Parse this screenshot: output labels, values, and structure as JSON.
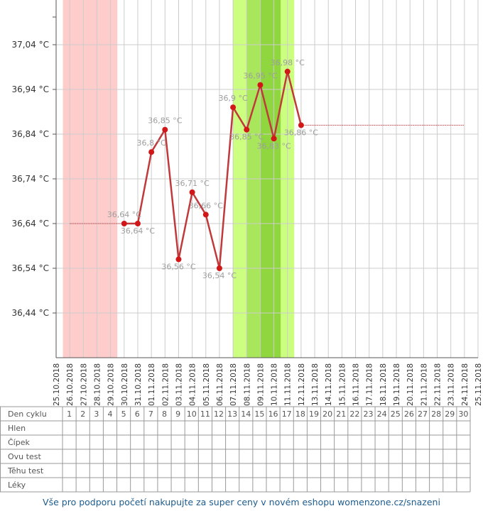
{
  "chart_data": {
    "type": "line",
    "y_unit": "°C",
    "ylim": [
      36.34,
      37.14
    ],
    "y_ticks": [
      "36,44 °C",
      "36,54 °C",
      "36,64 °C",
      "36,74 °C",
      "36,84 °C",
      "36,94 °C",
      "37,04 °C"
    ],
    "y_tick_values": [
      36.44,
      36.54,
      36.64,
      36.74,
      36.84,
      36.94,
      37.04
    ],
    "x": [
      "25.10.2018",
      "26.10.2018",
      "27.10.2018",
      "28.10.2018",
      "29.10.2018",
      "30.10.2018",
      "31.10.2018",
      "01.11.2018",
      "02.11.2018",
      "03.11.2018",
      "04.11.2018",
      "05.11.2018",
      "06.11.2018",
      "07.11.2018",
      "08.11.2018",
      "09.11.2018",
      "10.11.2018",
      "11.11.2018",
      "12.11.2018",
      "13.11.2018",
      "14.11.2018",
      "15.11.2018",
      "16.11.2018",
      "17.11.2018",
      "18.11.2018",
      "19.11.2018",
      "20.11.2018",
      "21.11.2018",
      "22.11.2018",
      "23.11.2018",
      "24.11.2018",
      "25.11.2018"
    ],
    "series": [
      {
        "color": "#c0393b",
        "points": [
          {
            "x": "30.10.2018",
            "y": 36.64,
            "label": "36,64 °C"
          },
          {
            "x": "31.10.2018",
            "y": 36.64,
            "label": "36,64 °C"
          },
          {
            "x": "01.11.2018",
            "y": 36.8,
            "label": "36,8 °C"
          },
          {
            "x": "02.11.2018",
            "y": 36.85,
            "label": "36,85 °C"
          },
          {
            "x": "03.11.2018",
            "y": 36.56,
            "label": "36,56 °C"
          },
          {
            "x": "04.11.2018",
            "y": 36.71,
            "label": "36,71 °C"
          },
          {
            "x": "05.11.2018",
            "y": 36.66,
            "label": "36,66 °C"
          },
          {
            "x": "06.11.2018",
            "y": 36.54,
            "label": "36,54 °C"
          },
          {
            "x": "07.11.2018",
            "y": 36.9,
            "label": "36,9 °C"
          },
          {
            "x": "08.11.2018",
            "y": 36.85,
            "label": "36,85 °C"
          },
          {
            "x": "09.11.2018",
            "y": 36.95,
            "label": "36,95 °C"
          },
          {
            "x": "10.11.2018",
            "y": 36.83,
            "label": "36,83 °C"
          },
          {
            "x": "11.11.2018",
            "y": 36.98,
            "label": "36,98 °C"
          },
          {
            "x": "12.11.2018",
            "y": 36.86,
            "label": "36,86 °C"
          }
        ]
      }
    ],
    "reference_lines": [
      {
        "from": "26.10.2018",
        "to": "30.10.2018",
        "y": 36.64,
        "color": "#c0393b"
      },
      {
        "from": "12.11.2018",
        "to": "24.11.2018",
        "y": 36.86,
        "color": "#c0393b"
      }
    ],
    "bands": [
      {
        "from": "25.10.2018",
        "to": "29.10.2018",
        "color": "#ffcccc"
      },
      {
        "from": "07.11.2018",
        "to": "11.11.2018",
        "color": "#ccff80"
      },
      {
        "from": "08.11.2018",
        "to": "09.11.2018",
        "color": "#a8e65c"
      },
      {
        "from": "09.11.2018",
        "to": "10.11.2018",
        "color": "#8fd63f"
      }
    ],
    "grid": true
  },
  "cycle_table": {
    "rows": [
      "Den cyklu",
      "Hlen",
      "Čípek",
      "Ovu test",
      "Těhu test",
      "Léky"
    ],
    "days": [
      "1",
      "2",
      "3",
      "4",
      "5",
      "6",
      "7",
      "8",
      "9",
      "10",
      "11",
      "12",
      "13",
      "14",
      "15",
      "16",
      "17",
      "18",
      "19",
      "20",
      "21",
      "22",
      "23",
      "24",
      "25",
      "26",
      "27",
      "28",
      "29",
      "30"
    ]
  },
  "footer": {
    "text": "Vše pro podporu početí nakupujte za super ceny v novém eshopu womenzone.cz/snazeni"
  }
}
